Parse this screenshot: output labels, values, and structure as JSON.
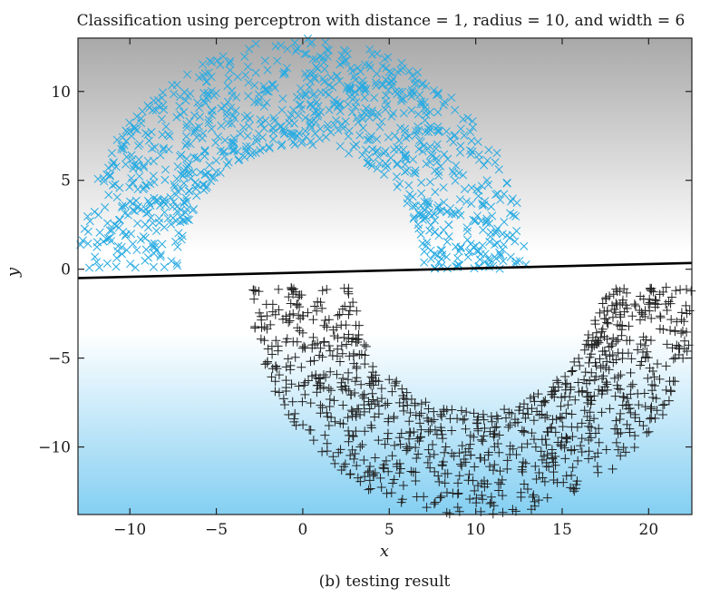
{
  "chart_data": {
    "type": "scatter",
    "title": "Classification using perceptron with distance = 1, radius = 10, and width = 6",
    "xlabel": "x",
    "ylabel": "y",
    "caption": "(b) testing result",
    "xlim": [
      -13,
      22.5
    ],
    "ylim": [
      -13.8,
      13
    ],
    "xticks": [
      -10,
      -5,
      0,
      5,
      10,
      15,
      20
    ],
    "yticks": [
      -10,
      -5,
      0,
      5,
      10
    ],
    "xtick_labels": [
      "−10",
      "−5",
      "0",
      "5",
      "10",
      "15",
      "20"
    ],
    "ytick_labels": [
      "−10",
      "−5",
      "0",
      "5",
      "10"
    ],
    "grid": false,
    "background": "vertical gradient: gray at top, white in the middle, light blue at bottom",
    "colors": {
      "upper_class": "#29abe2",
      "lower_class": "#222222",
      "decision_line": "#000000",
      "bg_top": "#a9a9a9",
      "bg_mid": "#ffffff",
      "bg_bottom": "#84cff2"
    },
    "series": [
      {
        "marker": "x",
        "color": "#29abe2",
        "shape": "upper half-moon",
        "center": [
          0,
          0
        ],
        "radius": 10,
        "width": 6,
        "count": 1000,
        "sample_points": [
          [
            -12.5,
            1.0
          ],
          [
            -7.5,
            7.5
          ],
          [
            0,
            12.8
          ],
          [
            7.5,
            7.5
          ],
          [
            12.5,
            1.0
          ],
          [
            0,
            8.0
          ],
          [
            -10,
            0.3
          ],
          [
            10,
            0.3
          ]
        ]
      },
      {
        "marker": "+",
        "color": "#222222",
        "shape": "lower half-moon",
        "center": [
          10,
          -1
        ],
        "radius": 10,
        "width": 6,
        "count": 1000,
        "sample_points": [
          [
            -2.5,
            -1.2
          ],
          [
            2.5,
            -8.5
          ],
          [
            10,
            -13.5
          ],
          [
            17.5,
            -8.5
          ],
          [
            22.5,
            -1.2
          ],
          [
            10,
            -8.5
          ],
          [
            0,
            -1.5
          ],
          [
            20,
            -1.2
          ]
        ]
      }
    ],
    "decision_boundary": {
      "x": [
        -13,
        22.5
      ],
      "y": [
        -0.5,
        0.35
      ]
    }
  }
}
